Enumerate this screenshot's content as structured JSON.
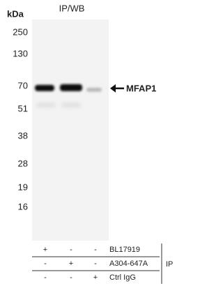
{
  "title": "IP/WB",
  "unit_label": "kDa",
  "markers": [
    "250",
    "130",
    "70",
    "51",
    "38",
    "28",
    "19",
    "16"
  ],
  "band_label": "MFAP1",
  "ip_table": {
    "rows": [
      {
        "cells": [
          "+",
          "-",
          "-"
        ],
        "label": "BL17919"
      },
      {
        "cells": [
          "-",
          "+",
          "-"
        ],
        "label": "A304-647A"
      },
      {
        "cells": [
          "-",
          "-",
          "+"
        ],
        "label": "Ctrl IgG"
      }
    ],
    "group_label": "IP"
  }
}
